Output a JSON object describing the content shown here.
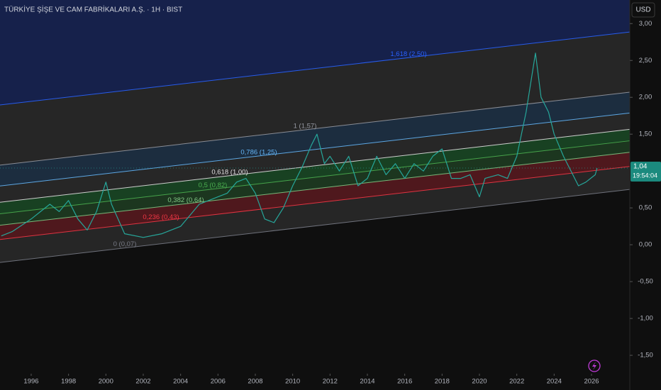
{
  "chart_data": {
    "type": "line",
    "title": "TÜRKİYE ŞİŞE VE CAM FABRİKALARI A.Ş. · 1H · BIST",
    "currency": "USD",
    "xlim": [
      1994.33,
      2028.05
    ],
    "ylim": [
      -1.73,
      3.32
    ],
    "xticks": [
      1996,
      1998,
      2000,
      2002,
      2004,
      2006,
      2008,
      2010,
      2012,
      2014,
      2016,
      2018,
      2020,
      2022,
      2024,
      2026
    ],
    "yticks": [
      {
        "value": 3.0,
        "label": "3,00"
      },
      {
        "value": 2.5,
        "label": "2,50"
      },
      {
        "value": 2.0,
        "label": "2,00"
      },
      {
        "value": 1.5,
        "label": "1,50"
      },
      {
        "value": 0.5,
        "label": "0,50"
      },
      {
        "value": 0.0,
        "label": "0,00"
      },
      {
        "value": -0.5,
        "label": "-0,50"
      },
      {
        "value": -1.0,
        "label": "-1,00"
      },
      {
        "value": -1.5,
        "label": "-1,50"
      }
    ],
    "x": [
      1994.4,
      1995,
      1996,
      1996.5,
      1997,
      1997.5,
      1998,
      1998.5,
      1999,
      1999.5,
      2000,
      2000.3,
      2001,
      2002,
      2003,
      2004,
      2005,
      2006,
      2006.5,
      2007,
      2007.5,
      2008,
      2008.5,
      2009,
      2009.5,
      2010,
      2010.5,
      2011,
      2011.3,
      2011.7,
      2012,
      2012.5,
      2013,
      2013.5,
      2014,
      2014.5,
      2015,
      2015.5,
      2016,
      2016.5,
      2017,
      2017.5,
      2018,
      2018.5,
      2019,
      2019.5,
      2020,
      2020.3,
      2021,
      2021.5,
      2022,
      2022.5,
      2023,
      2023.3,
      2023.7,
      2024,
      2024.5,
      2025,
      2025.3,
      2025.7,
      2026.2,
      2026.3
    ],
    "series": [
      {
        "color": "#26a69a",
        "values": [
          0.12,
          0.18,
          0.35,
          0.45,
          0.55,
          0.45,
          0.6,
          0.35,
          0.2,
          0.45,
          0.85,
          0.55,
          0.15,
          0.1,
          0.15,
          0.25,
          0.55,
          0.65,
          0.7,
          0.85,
          0.9,
          0.7,
          0.35,
          0.3,
          0.5,
          0.8,
          1.05,
          1.35,
          1.5,
          1.1,
          1.2,
          1.0,
          1.2,
          0.8,
          0.9,
          1.2,
          0.95,
          1.1,
          0.9,
          1.1,
          1.0,
          1.2,
          1.3,
          0.9,
          0.9,
          0.95,
          0.65,
          0.9,
          0.95,
          0.9,
          1.2,
          1.8,
          2.6,
          2.0,
          1.8,
          1.5,
          1.2,
          0.95,
          0.8,
          0.85,
          0.95,
          1.04
        ]
      }
    ],
    "channel": {
      "base_x": [
        1994.33,
        2028.05
      ],
      "base_y": [
        -0.24,
        0.75
      ],
      "width": 1.32,
      "levels": [
        {
          "level": 0,
          "label": "0 (0,07)",
          "color": "#787b86"
        },
        {
          "level": 0.236,
          "label": "0,236 (0,43)",
          "color": "#f23645"
        },
        {
          "level": 0.382,
          "label": "0,382 (0,64)",
          "color": "#81c784"
        },
        {
          "level": 0.5,
          "label": "0,5 (0,82)",
          "color": "#4caf50"
        },
        {
          "level": 0.618,
          "label": "0,618 (1,00)",
          "color": "#e0e0e0"
        },
        {
          "level": 0.786,
          "label": "0,786 (1,25)",
          "color": "#64b5f6"
        },
        {
          "level": 1,
          "label": "1 (1,57)",
          "color": "#9598a1"
        },
        {
          "level": 1.618,
          "label": "1,618 (2,50)",
          "color": "#2962ff"
        }
      ]
    },
    "last_price": {
      "value": 1.04,
      "label": "1,04"
    },
    "countdown": "19:54:04"
  }
}
